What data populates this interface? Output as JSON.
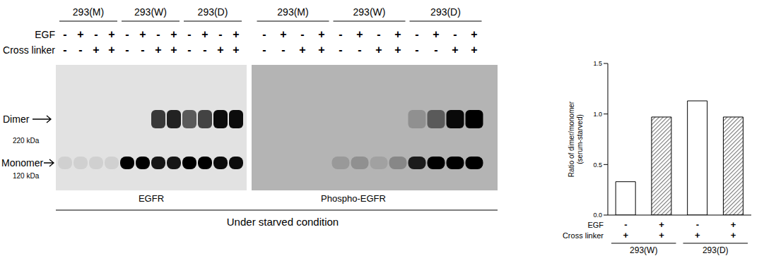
{
  "blot": {
    "row_labels": [
      "EGF",
      "Cross linker"
    ],
    "markers": {
      "dimer": "Dimer",
      "dimer_kda": "220 kDa",
      "monomer": "Monomer",
      "monomer_kda": "120 kDa"
    },
    "condition": "Under starved condition",
    "panels": [
      {
        "label": "EGFR",
        "groups": [
          "293(M)",
          "293(M)",
          "293(M)",
          "293(M)",
          "293(W)",
          "293(W)",
          "293(W)",
          "293(W)",
          "293(D)",
          "293(D)",
          "293(D)",
          "293(D)"
        ],
        "rows": [
          [
            "-",
            "+",
            "-",
            "+",
            "-",
            "+",
            "-",
            "+",
            "-",
            "+",
            "-",
            "+"
          ],
          [
            "-",
            "-",
            "+",
            "+",
            "-",
            "-",
            "+",
            "+",
            "-",
            "-",
            "+",
            "+"
          ]
        ],
        "monomer_band": [
          0.08,
          0.08,
          0.08,
          0.08,
          1,
          1,
          0.9,
          0.9,
          1,
          1,
          0.95,
          0.95
        ],
        "dimer_band": [
          0,
          0,
          0,
          0,
          0,
          0,
          0.75,
          0.85,
          0.6,
          0.7,
          0.95,
          0.95
        ]
      },
      {
        "label": "Phospho-EGFR",
        "groups": [
          "293(M)",
          "293(M)",
          "293(M)",
          "293(M)",
          "293(W)",
          "293(W)",
          "293(W)",
          "293(W)",
          "293(D)",
          "293(D)",
          "293(D)",
          "293(D)"
        ],
        "rows": [
          [
            "-",
            "+",
            "-",
            "+",
            "-",
            "+",
            "-",
            "+",
            "-",
            "+",
            "-",
            "+"
          ],
          [
            "-",
            "-",
            "+",
            "+",
            "-",
            "-",
            "+",
            "+",
            "-",
            "-",
            "+",
            "+"
          ]
        ],
        "monomer_band": [
          0,
          0,
          0,
          0,
          0.15,
          0.2,
          0.1,
          0.25,
          0.85,
          1,
          1,
          1
        ],
        "dimer_band": [
          0,
          0,
          0,
          0,
          0,
          0,
          0,
          0,
          0.2,
          0.5,
          0.95,
          1
        ]
      }
    ]
  },
  "chart_data": {
    "type": "bar",
    "y_label": "Ratio of dimer/monomer (serum-starved)",
    "values": [
      0.33,
      0.97,
      1.13,
      0.97
    ],
    "colors": [
      "#ffffff",
      "#7a7a7a",
      "#ffffff",
      "#7a7a7a"
    ],
    "x_rows": [
      {
        "label": "EGF",
        "values": [
          "-",
          "+",
          "-",
          "+"
        ]
      },
      {
        "label": "Cross linker",
        "values": [
          "+",
          "+",
          "+",
          "+"
        ]
      }
    ],
    "groups": [
      "293(W)",
      "293(W)",
      "293(D)",
      "293(D)"
    ],
    "ylim": [
      0,
      1.5
    ],
    "yticks": [
      {
        "value": 0,
        "label": "0.0"
      },
      {
        "value": 0.5,
        "label": "0.5"
      },
      {
        "value": 1,
        "label": "1.0"
      },
      {
        "value": 1.5,
        "label": "1.5"
      }
    ],
    "grid": false
  }
}
